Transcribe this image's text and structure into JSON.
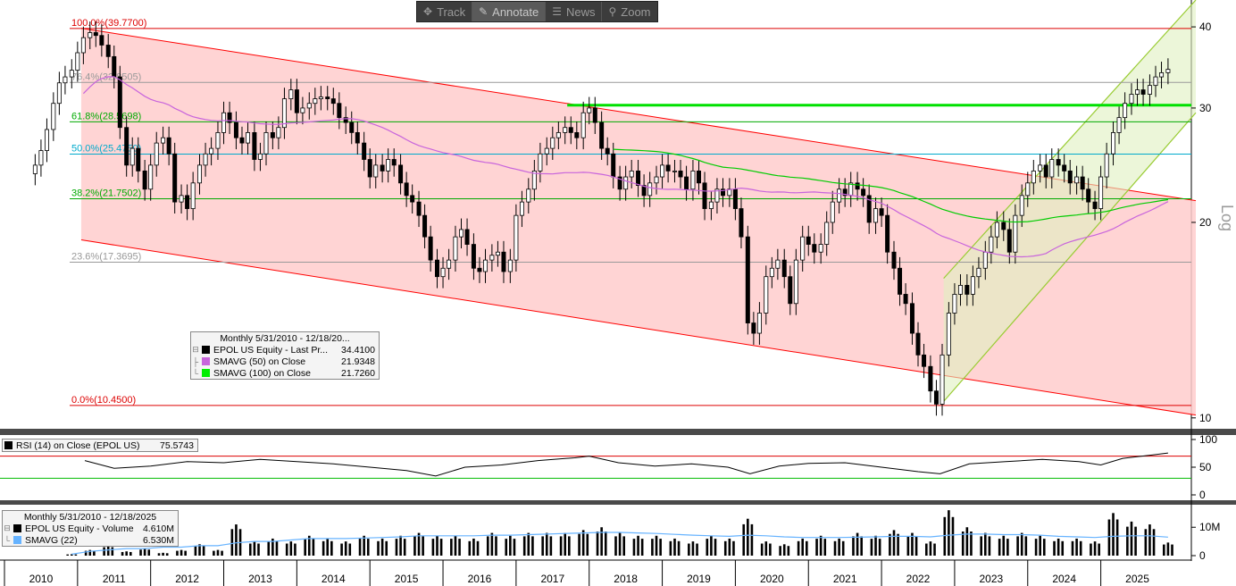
{
  "toolbar": {
    "items": [
      {
        "label": "Track",
        "icon": "crosshair-icon",
        "active": false
      },
      {
        "label": "Annotate",
        "icon": "pencil-icon",
        "active": true
      },
      {
        "label": "News",
        "icon": "news-icon",
        "active": false
      },
      {
        "label": "Zoom",
        "icon": "magnifier-icon",
        "active": false
      }
    ]
  },
  "colors": {
    "background": "#ffffff",
    "up_candle": "#ffffff",
    "down_candle": "#000000",
    "sma50": "#c864dc",
    "sma100": "#00cc00",
    "down_channel": "#ff0000",
    "down_channel_fill": "#ffcccc",
    "up_channel": "#99cc33",
    "up_channel_fill": "#e0f0c0",
    "highlight_line": "#00e000",
    "rsi_line": "#000000",
    "rsi_upper": "#dd0000",
    "rsi_lower": "#00bb00",
    "volume_bar": "#000000",
    "volume_sma": "#66b3ff"
  },
  "chart_data": [
    {
      "type": "candlestick",
      "panel": "price",
      "scale": "log",
      "scale_label": "Log",
      "ylim": [
        9.5,
        44
      ],
      "y_ticks": [
        10,
        20,
        30,
        40
      ],
      "x_ticks": [
        "2010",
        "2011",
        "2012",
        "2013",
        "2014",
        "2015",
        "2016",
        "2017",
        "2018",
        "2019",
        "2020",
        "2021",
        "2022",
        "2023",
        "2024",
        "2025"
      ],
      "legend": {
        "header": "Monthly 5/31/2010 - 12/18/20...",
        "entries": [
          {
            "name": "EPOL US Equity - Last Pr...",
            "value": "34.4100",
            "color": "#000000"
          },
          {
            "name": "SMAVG (50)  on Close",
            "value": "21.9348",
            "color": "#c864dc"
          },
          {
            "name": "SMAVG (100)  on Close",
            "value": "21.7260",
            "color": "#00cc00"
          }
        ]
      },
      "fibonacci": [
        {
          "label": "100.0%(39.7700)",
          "value": 39.77,
          "color": "#dd0000"
        },
        {
          "label": "76.4%(32.8505)",
          "value": 32.85,
          "color": "#999999"
        },
        {
          "label": "61.8%(28.5698)",
          "value": 28.57,
          "color": "#00aa00"
        },
        {
          "label": "50.0%(25.4750)",
          "value": 25.475,
          "color": "#00aacc"
        },
        {
          "label": "38.2%(21.7502)",
          "value": 21.75,
          "color": "#00aa00"
        },
        {
          "label": "23.6%(17.3695)",
          "value": 17.37,
          "color": "#999999"
        },
        {
          "label": "0.0%(10.4500)",
          "value": 10.45,
          "color": "#dd0000"
        }
      ],
      "horizontal_line": {
        "value": 30.3,
        "from": 2017.7,
        "to": 2026.3,
        "color": "#00e000"
      },
      "down_channel": {
        "upper": [
          [
            2011.05,
            39.8
          ],
          [
            2026.3,
            21.6
          ]
        ],
        "lower": [
          [
            2011.05,
            18.8
          ],
          [
            2026.3,
            10.1
          ]
        ]
      },
      "up_channel": {
        "lower": [
          [
            2022.85,
            10.6
          ],
          [
            2026.3,
            29.5
          ]
        ],
        "upper": [
          [
            2022.85,
            16.4
          ],
          [
            2026.3,
            44
          ]
        ]
      },
      "closes": [
        [
          2010.42,
          24.5
        ],
        [
          2010.5,
          25.8
        ],
        [
          2010.58,
          27.8
        ],
        [
          2010.67,
          30.5
        ],
        [
          2010.75,
          32.8
        ],
        [
          2010.83,
          33.5
        ],
        [
          2010.92,
          34.3
        ],
        [
          2011.0,
          36.5
        ],
        [
          2011.08,
          38.5
        ],
        [
          2011.17,
          39.2
        ],
        [
          2011.25,
          38.8
        ],
        [
          2011.33,
          37.5
        ],
        [
          2011.42,
          36.0
        ],
        [
          2011.5,
          33.5
        ],
        [
          2011.58,
          28.0
        ],
        [
          2011.67,
          24.5
        ],
        [
          2011.75,
          26.0
        ],
        [
          2011.83,
          24.0
        ],
        [
          2011.92,
          22.5
        ],
        [
          2012.0,
          24.5
        ],
        [
          2012.08,
          26.5
        ],
        [
          2012.17,
          27.0
        ],
        [
          2012.25,
          25.5
        ],
        [
          2012.33,
          21.5
        ],
        [
          2012.42,
          22.0
        ],
        [
          2012.5,
          21.0
        ],
        [
          2012.58,
          23.0
        ],
        [
          2012.67,
          24.5
        ],
        [
          2012.75,
          25.5
        ],
        [
          2012.83,
          26.0
        ],
        [
          2012.92,
          27.5
        ],
        [
          2013.0,
          29.5
        ],
        [
          2013.08,
          28.5
        ],
        [
          2013.17,
          27.0
        ],
        [
          2013.25,
          26.5
        ],
        [
          2013.33,
          27.5
        ],
        [
          2013.42,
          25.0
        ],
        [
          2013.5,
          25.5
        ],
        [
          2013.58,
          27.5
        ],
        [
          2013.67,
          27.0
        ],
        [
          2013.75,
          28.0
        ],
        [
          2013.83,
          31.0
        ],
        [
          2013.92,
          32.0
        ],
        [
          2014.0,
          29.5
        ],
        [
          2014.08,
          30.0
        ],
        [
          2014.17,
          30.5
        ],
        [
          2014.25,
          31.0
        ],
        [
          2014.33,
          31.2
        ],
        [
          2014.42,
          31.0
        ],
        [
          2014.5,
          30.5
        ],
        [
          2014.58,
          29.0
        ],
        [
          2014.67,
          28.5
        ],
        [
          2014.75,
          27.5
        ],
        [
          2014.83,
          26.5
        ],
        [
          2014.92,
          25.0
        ],
        [
          2015.0,
          23.5
        ],
        [
          2015.08,
          24.5
        ],
        [
          2015.17,
          24.0
        ],
        [
          2015.25,
          25.0
        ],
        [
          2015.33,
          24.5
        ],
        [
          2015.42,
          23.0
        ],
        [
          2015.5,
          22.0
        ],
        [
          2015.58,
          21.5
        ],
        [
          2015.67,
          20.5
        ],
        [
          2015.75,
          19.0
        ],
        [
          2015.83,
          17.5
        ],
        [
          2015.92,
          16.5
        ],
        [
          2016.0,
          17.0
        ],
        [
          2016.08,
          17.5
        ],
        [
          2016.17,
          19.0
        ],
        [
          2016.25,
          19.5
        ],
        [
          2016.33,
          18.5
        ],
        [
          2016.42,
          17.0
        ],
        [
          2016.5,
          16.8
        ],
        [
          2016.58,
          17.5
        ],
        [
          2016.67,
          17.8
        ],
        [
          2016.75,
          18.0
        ],
        [
          2016.83,
          16.8
        ],
        [
          2016.92,
          17.5
        ],
        [
          2017.0,
          20.5
        ],
        [
          2017.08,
          21.5
        ],
        [
          2017.17,
          22.5
        ],
        [
          2017.25,
          24.0
        ],
        [
          2017.33,
          25.5
        ],
        [
          2017.42,
          26.0
        ],
        [
          2017.5,
          27.0
        ],
        [
          2017.58,
          27.5
        ],
        [
          2017.67,
          28.0
        ],
        [
          2017.75,
          27.5
        ],
        [
          2017.83,
          27.0
        ],
        [
          2017.92,
          29.5
        ],
        [
          2018.0,
          30.0
        ],
        [
          2018.08,
          28.5
        ],
        [
          2018.17,
          26.0
        ],
        [
          2018.25,
          25.5
        ],
        [
          2018.33,
          23.5
        ],
        [
          2018.42,
          22.5
        ],
        [
          2018.5,
          23.5
        ],
        [
          2018.58,
          24.0
        ],
        [
          2018.67,
          22.8
        ],
        [
          2018.75,
          22.0
        ],
        [
          2018.83,
          23.0
        ],
        [
          2018.92,
          23.5
        ],
        [
          2019.0,
          24.5
        ],
        [
          2019.08,
          24.0
        ],
        [
          2019.17,
          24.0
        ],
        [
          2019.25,
          23.5
        ],
        [
          2019.33,
          22.5
        ],
        [
          2019.42,
          24.0
        ],
        [
          2019.5,
          23.0
        ],
        [
          2019.58,
          21.0
        ],
        [
          2019.67,
          21.5
        ],
        [
          2019.75,
          22.5
        ],
        [
          2019.83,
          22.0
        ],
        [
          2019.92,
          22.5
        ],
        [
          2020.0,
          21.0
        ],
        [
          2020.08,
          19.0
        ],
        [
          2020.17,
          14.0
        ],
        [
          2020.25,
          13.5
        ],
        [
          2020.33,
          14.5
        ],
        [
          2020.42,
          16.5
        ],
        [
          2020.5,
          17.0
        ],
        [
          2020.58,
          17.5
        ],
        [
          2020.67,
          16.5
        ],
        [
          2020.75,
          15.0
        ],
        [
          2020.83,
          17.5
        ],
        [
          2020.92,
          19.0
        ],
        [
          2021.0,
          18.5
        ],
        [
          2021.08,
          18.0
        ],
        [
          2021.17,
          18.5
        ],
        [
          2021.25,
          20.0
        ],
        [
          2021.33,
          21.5
        ],
        [
          2021.42,
          22.5
        ],
        [
          2021.5,
          22.0
        ],
        [
          2021.58,
          23.0
        ],
        [
          2021.67,
          22.5
        ],
        [
          2021.75,
          22.0
        ],
        [
          2021.83,
          20.0
        ],
        [
          2021.92,
          21.0
        ],
        [
          2022.0,
          20.5
        ],
        [
          2022.08,
          18.0
        ],
        [
          2022.17,
          17.0
        ],
        [
          2022.25,
          15.5
        ],
        [
          2022.33,
          15.0
        ],
        [
          2022.42,
          13.5
        ],
        [
          2022.5,
          12.5
        ],
        [
          2022.58,
          12.0
        ],
        [
          2022.67,
          11.0
        ],
        [
          2022.75,
          10.5
        ],
        [
          2022.83,
          12.5
        ],
        [
          2022.92,
          14.5
        ],
        [
          2023.0,
          15.5
        ],
        [
          2023.08,
          16.0
        ],
        [
          2023.17,
          15.5
        ],
        [
          2023.25,
          16.5
        ],
        [
          2023.33,
          17.0
        ],
        [
          2023.42,
          18.0
        ],
        [
          2023.5,
          19.0
        ],
        [
          2023.58,
          20.0
        ],
        [
          2023.67,
          19.5
        ],
        [
          2023.75,
          18.0
        ],
        [
          2023.83,
          20.5
        ],
        [
          2023.92,
          22.0
        ],
        [
          2024.0,
          23.0
        ],
        [
          2024.08,
          24.0
        ],
        [
          2024.17,
          24.5
        ],
        [
          2024.25,
          23.5
        ],
        [
          2024.33,
          25.0
        ],
        [
          2024.42,
          24.5
        ],
        [
          2024.5,
          24.0
        ],
        [
          2024.58,
          23.0
        ],
        [
          2024.67,
          23.5
        ],
        [
          2024.75,
          22.5
        ],
        [
          2024.83,
          21.5
        ],
        [
          2024.92,
          21.0
        ],
        [
          2025.0,
          23.5
        ],
        [
          2025.08,
          25.5
        ],
        [
          2025.17,
          27.5
        ],
        [
          2025.25,
          29.0
        ],
        [
          2025.33,
          30.5
        ],
        [
          2025.42,
          31.5
        ],
        [
          2025.5,
          32.0
        ],
        [
          2025.58,
          31.5
        ],
        [
          2025.67,
          32.5
        ],
        [
          2025.75,
          33.5
        ],
        [
          2025.83,
          34.0
        ],
        [
          2025.92,
          34.41
        ]
      ]
    },
    {
      "type": "line",
      "panel": "rsi",
      "legend": [
        {
          "name": "RSI (14)  on Close (EPOL US)",
          "value": "75.5743",
          "color": "#000000"
        }
      ],
      "ylim": [
        0,
        100
      ],
      "y_ticks": [
        0,
        50,
        100
      ],
      "thresholds": [
        70,
        30
      ],
      "x": [
        2011.1,
        2011.5,
        2012.0,
        2012.5,
        2013.0,
        2013.5,
        2014.0,
        2014.5,
        2015.0,
        2015.5,
        2015.9,
        2016.3,
        2016.8,
        2017.3,
        2017.8,
        2018.0,
        2018.4,
        2018.9,
        2019.4,
        2019.9,
        2020.2,
        2020.6,
        2021.0,
        2021.5,
        2022.0,
        2022.5,
        2022.8,
        2023.2,
        2023.7,
        2024.2,
        2024.7,
        2025.0,
        2025.3,
        2025.7,
        2025.92
      ],
      "values": [
        62,
        48,
        52,
        60,
        58,
        64,
        60,
        56,
        50,
        44,
        34,
        50,
        54,
        62,
        67,
        70,
        58,
        52,
        56,
        50,
        38,
        52,
        57,
        58,
        50,
        42,
        38,
        56,
        60,
        64,
        60,
        54,
        66,
        72,
        75.57
      ]
    },
    {
      "type": "bar",
      "panel": "volume",
      "header": "Monthly 5/31/2010 - 12/18/2025",
      "legend": [
        {
          "name": "EPOL US Equity - Volume",
          "value": "4.610M",
          "color": "#000000"
        },
        {
          "name": "SMAVG (22)",
          "value": "6.530M",
          "color": "#66b3ff"
        }
      ],
      "unit": "M",
      "ylim": [
        0,
        17
      ],
      "y_ticks": [
        0,
        10
      ],
      "y_tick_labels": [
        "0",
        "10M"
      ],
      "x": [
        2010.92,
        2011.17,
        2011.42,
        2011.67,
        2011.92,
        2012.17,
        2012.42,
        2012.67,
        2012.92,
        2013.17,
        2013.42,
        2013.67,
        2013.92,
        2014.17,
        2014.42,
        2014.67,
        2014.92,
        2015.17,
        2015.42,
        2015.67,
        2015.92,
        2016.17,
        2016.42,
        2016.67,
        2016.92,
        2017.17,
        2017.42,
        2017.67,
        2017.92,
        2018.17,
        2018.42,
        2018.67,
        2018.92,
        2019.17,
        2019.42,
        2019.67,
        2019.92,
        2020.17,
        2020.42,
        2020.67,
        2020.92,
        2021.17,
        2021.42,
        2021.67,
        2021.92,
        2022.17,
        2022.42,
        2022.67,
        2022.92,
        2023.17,
        2023.42,
        2023.67,
        2023.92,
        2024.17,
        2024.42,
        2024.67,
        2024.92,
        2025.17,
        2025.42,
        2025.67,
        2025.92
      ],
      "values": [
        0.5,
        2,
        3.5,
        1.5,
        2.5,
        1,
        2,
        4,
        2,
        11,
        5,
        6,
        5,
        7,
        6,
        5,
        7,
        6,
        7,
        8,
        7,
        7,
        6,
        8,
        7,
        8,
        8,
        8,
        9,
        10,
        8,
        7,
        7,
        6,
        5,
        7,
        6,
        13,
        5,
        4,
        6,
        7,
        6,
        8,
        7,
        9,
        8,
        5,
        16,
        10,
        8,
        7,
        8,
        7,
        6,
        6,
        5,
        15,
        12,
        11,
        4.61
      ],
      "sma_values": [
        0.5,
        1.5,
        2,
        2.5,
        2.5,
        3,
        3,
        3.5,
        3.5,
        4.5,
        5,
        5,
        5.5,
        6,
        6,
        6,
        6.2,
        6.4,
        6.6,
        7,
        7,
        7,
        7,
        7.2,
        7.2,
        7.4,
        7.6,
        7.8,
        8,
        8.2,
        8.2,
        8,
        7.8,
        7.5,
        7.2,
        7,
        6.8,
        7.2,
        7,
        6.6,
        6.4,
        6.4,
        6.4,
        6.5,
        6.6,
        6.8,
        6.8,
        6.6,
        7.2,
        7.6,
        7.6,
        7.4,
        7.4,
        7.2,
        6.8,
        6.6,
        6.4,
        6.8,
        7,
        7,
        6.53
      ]
    }
  ]
}
